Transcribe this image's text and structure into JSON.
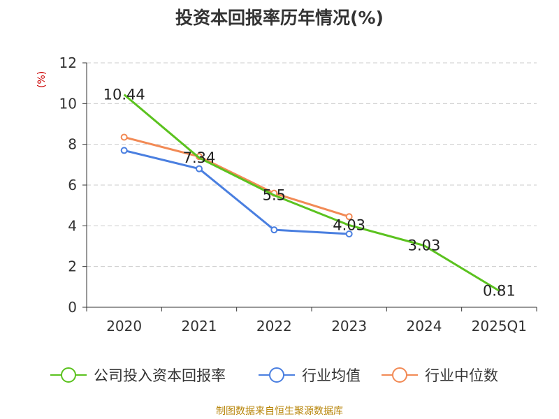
{
  "chart_data": {
    "type": "line",
    "title": "投资本回报率历年情况(%)",
    "ylabel": "(%)",
    "xlabel": "",
    "categories": [
      "2020",
      "2021",
      "2022",
      "2023",
      "2024",
      "2025Q1"
    ],
    "ylim": [
      0,
      12
    ],
    "yticks": [
      0,
      2,
      4,
      6,
      8,
      10,
      12
    ],
    "grid": true,
    "legend_position": "bottom",
    "series": [
      {
        "name": "公司投入资本回报率",
        "color": "#5bc21f",
        "values": [
          10.44,
          7.34,
          5.5,
          4.03,
          3.03,
          0.81
        ],
        "labels": [
          "10.44",
          "7.34",
          "5.5",
          "4.03",
          "3.03",
          "0.81"
        ]
      },
      {
        "name": "行业均值",
        "color": "#4a7fe0",
        "values": [
          7.7,
          6.8,
          3.8,
          3.6,
          null,
          null
        ]
      },
      {
        "name": "行业中位数",
        "color": "#f28a55",
        "values": [
          8.35,
          7.4,
          5.6,
          4.45,
          null,
          null
        ]
      }
    ],
    "source": "制图数据来自恒生聚源数据库"
  }
}
